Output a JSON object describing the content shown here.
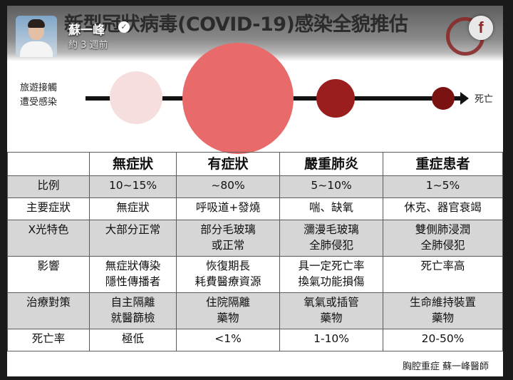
{
  "title": "新型冠狀病毒(COVID-19)感染全貌推估",
  "post": {
    "poster_name": "蘇一峰",
    "timestamp": "約 3 週前",
    "verified_glyph": "✓",
    "fb_glyph": "f"
  },
  "timeline": {
    "start_label_1": "旅遊接觸",
    "start_label_2": "遭受感染",
    "end_label": "死亡",
    "colors": [
      "#f7dede",
      "#e86a6a",
      "#9b1e1e",
      "#7a1212"
    ]
  },
  "table": {
    "headers": [
      "",
      "無症狀",
      "有症狀",
      "嚴重肺炎",
      "重症患者"
    ],
    "rows": [
      {
        "label": "比例",
        "cells": [
          [
            "10~15%"
          ],
          [
            "~80%"
          ],
          [
            "5~10%"
          ],
          [
            "1~5%"
          ]
        ]
      },
      {
        "label": "主要症狀",
        "cells": [
          [
            "無症狀"
          ],
          [
            "呼吸道+發燒"
          ],
          [
            "喘、缺氧"
          ],
          [
            "休克、器官衰竭"
          ]
        ]
      },
      {
        "label": "X光特色",
        "cells": [
          [
            "大部分正常"
          ],
          [
            "部分毛玻璃",
            "或正常"
          ],
          [
            "瀰漫毛玻璃",
            "全肺侵犯"
          ],
          [
            "雙側肺浸潤",
            "全肺侵犯"
          ]
        ]
      },
      {
        "label": "影響",
        "cells": [
          [
            "無症狀傳染",
            "隱性傳播者"
          ],
          [
            "恢復期長",
            "耗費醫療資源"
          ],
          [
            "具一定死亡率",
            "換氣功能損傷"
          ],
          [
            "死亡率高"
          ]
        ]
      },
      {
        "label": "治療對策",
        "cells": [
          [
            "自主隔離",
            "就醫篩檢"
          ],
          [
            "住院隔離",
            "藥物"
          ],
          [
            "氧氣或插管",
            "藥物"
          ],
          [
            "生命維持裝置",
            "藥物"
          ]
        ]
      },
      {
        "label": "死亡率",
        "cells": [
          [
            "極低"
          ],
          [
            "<1%"
          ],
          [
            "1-10%"
          ],
          [
            "20-50%"
          ]
        ]
      }
    ]
  },
  "footer": "胸腔重症  蘇一峰醫師"
}
